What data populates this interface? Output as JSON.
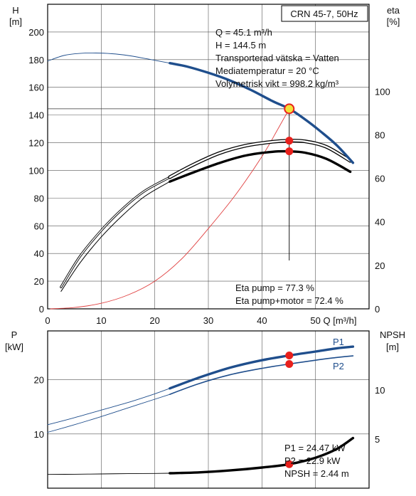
{
  "chart_data": [
    {
      "type": "line",
      "title": "CRN 45-7, 50Hz",
      "xlabel": "Q [m³/h]",
      "ylabel_left": "H\n[m]",
      "ylabel_right": "eta\n[%]",
      "xlim": [
        0,
        60
      ],
      "ylim_left": [
        0,
        220
      ],
      "ylim_right": [
        0,
        140
      ],
      "x_ticks": [
        "0",
        "10",
        "20",
        "30",
        "40",
        "50"
      ],
      "y_ticks_left": [
        "0",
        "20",
        "40",
        "60",
        "80",
        "100",
        "120",
        "140",
        "160",
        "180",
        "200"
      ],
      "y_ticks_right": [
        "0",
        "20",
        "40",
        "60",
        "80",
        "100"
      ],
      "info_lines": [
        "Q = 45.1 m³/h",
        "H = 144.5 m",
        "Transporterad vätska = Vatten",
        "Mediatemperatur = 20 °C",
        "Volymetrisk vikt = 998.2 kg/m³"
      ],
      "eff_lines": [
        "Eta pump = 77.3 %",
        "Eta pump+motor = 72.4 %"
      ],
      "operating_point": {
        "q": 45.1,
        "h": 144.5,
        "eta_pump": 77.3,
        "eta_pump_motor": 72.4
      },
      "series": [
        {
          "id": "H_full",
          "axis": "left",
          "x": [
            0,
            3,
            6,
            9,
            12,
            15,
            18,
            21,
            22.8
          ],
          "y": [
            179,
            183,
            184.5,
            184.8,
            184.3,
            183,
            181,
            178.8,
            177.5
          ]
        },
        {
          "id": "H_op",
          "axis": "left",
          "x": [
            22.8,
            26,
            30,
            34,
            38,
            42,
            45.1,
            48,
            51,
            54,
            57
          ],
          "y": [
            177.5,
            175,
            170.5,
            165,
            158,
            150,
            144.5,
            137,
            128,
            118,
            105.5
          ]
        },
        {
          "id": "Eta_pump",
          "axis": "right",
          "x": [
            2.5,
            6,
            10,
            14,
            18,
            22.8,
            27,
            32,
            37,
            42,
            45.1,
            48,
            52,
            56.5
          ],
          "y": [
            10,
            24,
            36,
            46,
            54,
            60.5,
            66,
            71.5,
            75,
            76.8,
            77.3,
            77,
            74.5,
            68
          ]
        },
        {
          "id": "Eta_pump_motor",
          "axis": "right",
          "x": [
            2.5,
            6,
            10,
            14,
            18,
            22.8,
            27,
            32,
            37,
            42,
            45.1,
            48,
            52,
            56.5
          ],
          "y": [
            8,
            21,
            33,
            43,
            51.5,
            58.5,
            62.5,
            67,
            70.5,
            72.2,
            72.4,
            71.8,
            69,
            63
          ]
        },
        {
          "id": "Head_locus",
          "axis": "left",
          "x": [
            0.5,
            5,
            10,
            15,
            20,
            25,
            30,
            35,
            40,
            43,
            45.1
          ],
          "y": [
            0,
            1,
            4,
            10,
            20,
            36,
            58,
            82,
            110,
            130,
            144.5
          ]
        }
      ]
    },
    {
      "type": "line",
      "ylabel_left": "P\n[kW]",
      "ylabel_right": "NPSH\n[m]",
      "xlim": [
        0,
        60
      ],
      "ylim_left": [
        0,
        29
      ],
      "ylim_right": [
        0,
        16
      ],
      "y_ticks_left": [
        "10",
        "20"
      ],
      "y_ticks_right": [
        "5",
        "10"
      ],
      "info_lines": [
        "P1 = 24.47 kW",
        "P2 = 22.9 kW",
        "NPSH = 2.44 m"
      ],
      "curve_labels": [
        "P1",
        "P2"
      ],
      "operating_point": {
        "q": 45.1,
        "p1": 24.47,
        "p2": 22.9,
        "npsh": 2.44
      },
      "series": [
        {
          "id": "P1_full",
          "axis": "left",
          "x": [
            0,
            5,
            10,
            15,
            20,
            22.8
          ],
          "y": [
            11.7,
            13,
            14.4,
            15.8,
            17.4,
            18.4
          ]
        },
        {
          "id": "P1_op",
          "axis": "left",
          "x": [
            22.8,
            28,
            34,
            40,
            45.1,
            50,
            54,
            57
          ],
          "y": [
            18.4,
            20.3,
            22.2,
            23.6,
            24.47,
            25.2,
            25.8,
            26.1
          ]
        },
        {
          "id": "P2_full",
          "axis": "left",
          "x": [
            0,
            5,
            10,
            15,
            20,
            22.8
          ],
          "y": [
            10.3,
            11.7,
            13.2,
            14.8,
            16.4,
            17.3
          ]
        },
        {
          "id": "P2_op",
          "axis": "left",
          "x": [
            22.8,
            28,
            34,
            40,
            45.1,
            50,
            54,
            57
          ],
          "y": [
            17.3,
            19.2,
            20.9,
            22.1,
            22.9,
            23.6,
            24.1,
            24.4
          ]
        },
        {
          "id": "NPSH_full",
          "axis": "right",
          "x": [
            0,
            5,
            10,
            15,
            20,
            22.8
          ],
          "y": [
            1.4,
            1.42,
            1.45,
            1.48,
            1.5,
            1.52
          ]
        },
        {
          "id": "NPSH_op",
          "axis": "right",
          "x": [
            22.8,
            28,
            34,
            40,
            45.1,
            50,
            54,
            57
          ],
          "y": [
            1.52,
            1.6,
            1.8,
            2.1,
            2.44,
            3.1,
            4.0,
            5.1
          ]
        }
      ]
    }
  ],
  "colors": {
    "blue": "#1f4e8c",
    "black": "#000000",
    "red": "#e8201c",
    "locus": "#e04040",
    "marker_fill": "#f2e23a"
  }
}
